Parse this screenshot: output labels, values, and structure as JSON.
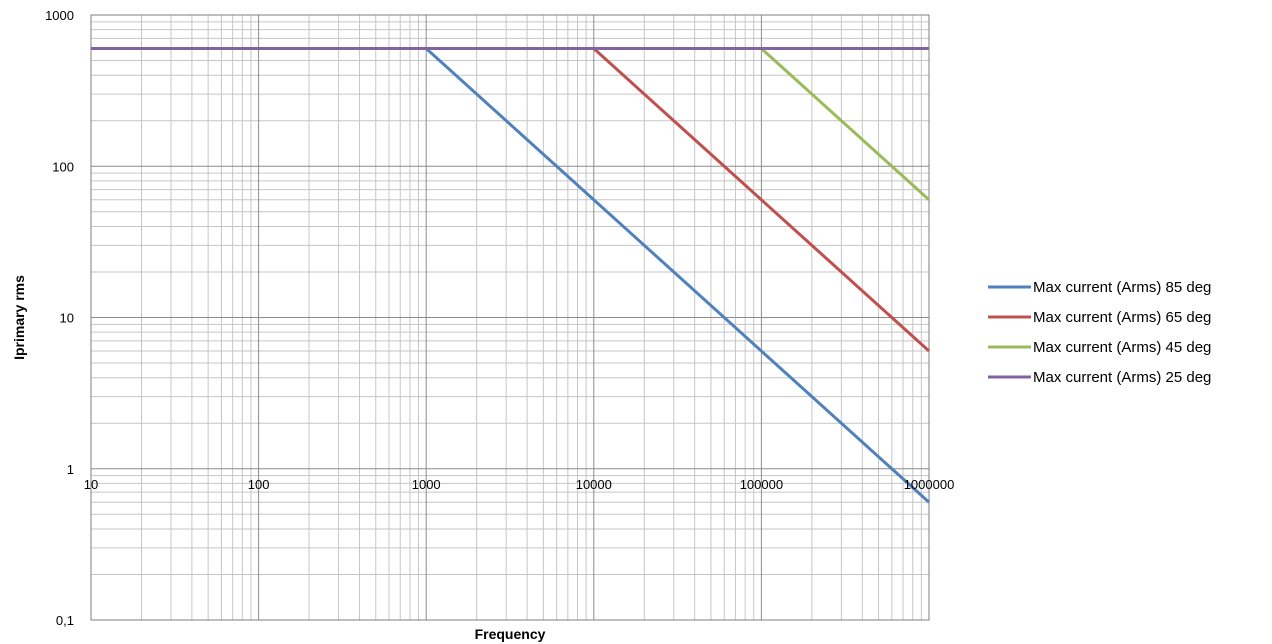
{
  "chart_data": {
    "type": "line",
    "x_scale": "log",
    "y_scale": "log",
    "xlim": [
      10,
      1000000
    ],
    "ylim": [
      0.1,
      1000
    ],
    "xlabel": "Frequency",
    "ylabel": "Iprimary rms",
    "x_ticks": [
      "10",
      "100",
      "1000",
      "10000",
      "100000",
      "1000000"
    ],
    "y_ticks": [
      "0,1",
      "1",
      "10",
      "100",
      "1000"
    ],
    "grid": true,
    "legend_position": "right",
    "series": [
      {
        "name": "Max current (Arms) 85 deg",
        "color": "#4F81BD",
        "x": [
          10,
          1000,
          1000000
        ],
        "y": [
          600,
          600,
          0.6
        ]
      },
      {
        "name": "Max current (Arms) 65 deg",
        "color": "#C0504D",
        "x": [
          10000,
          1000000
        ],
        "y": [
          600,
          6
        ]
      },
      {
        "name": "Max current (Arms) 45 deg",
        "color": "#9BBB59",
        "x": [
          100000,
          1000000
        ],
        "y": [
          600,
          60
        ]
      },
      {
        "name": "Max current (Arms) 25 deg",
        "color": "#8064A2",
        "x": [
          10,
          1000000
        ],
        "y": [
          600,
          600
        ]
      }
    ]
  }
}
